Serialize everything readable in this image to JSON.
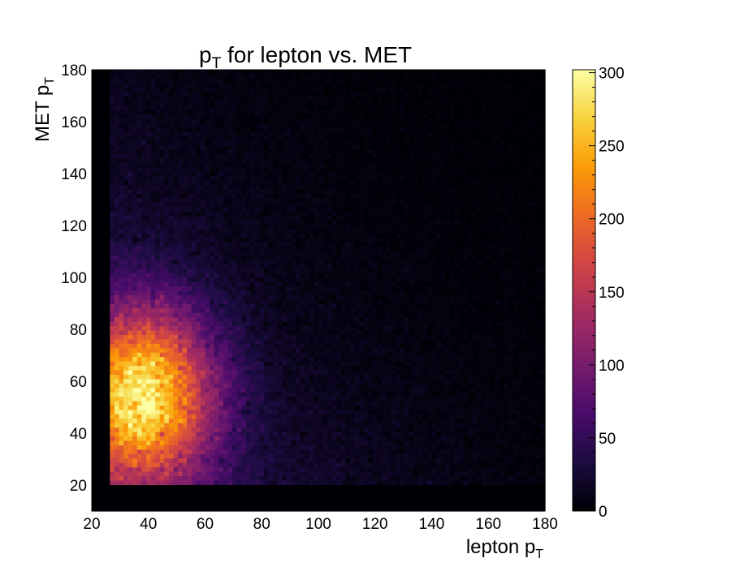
{
  "chart_data": {
    "type": "heatmap",
    "title": {
      "main": "p",
      "sub": "T",
      "rest": " for lepton vs. MET"
    },
    "xlabel": {
      "main": "lepton p",
      "sub": "T"
    },
    "ylabel": {
      "main": "MET p",
      "sub": "T"
    },
    "xlim": [
      20,
      180
    ],
    "ylim": [
      10,
      180
    ],
    "xticks": [
      20,
      40,
      60,
      80,
      100,
      120,
      140,
      160,
      180
    ],
    "yticks": [
      20,
      40,
      60,
      80,
      100,
      120,
      140,
      160,
      180
    ],
    "bins": {
      "x_start": 20,
      "x_end": 180,
      "x_width": 1.6,
      "y_start": 10,
      "y_end": 180,
      "y_width": 1.7
    },
    "populated_region": {
      "x_min": 27,
      "y_min": 20
    },
    "peak": {
      "x": 38,
      "y": 55,
      "value": 300
    },
    "colorbar": {
      "min": 0,
      "max": 300,
      "ticks": [
        0,
        50,
        100,
        150,
        200,
        250,
        300
      ],
      "colormap": "inferno"
    },
    "colormap_stops": [
      "#000004",
      "#1b0c41",
      "#4a0c6b",
      "#781c6d",
      "#a52c60",
      "#cf4446",
      "#ed6925",
      "#fb9b06",
      "#f7d13d",
      "#fcffa4"
    ],
    "grid": false
  }
}
